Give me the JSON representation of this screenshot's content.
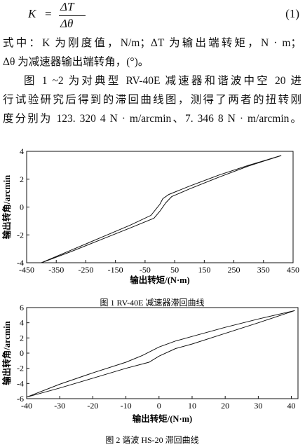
{
  "equation": {
    "lhs": "K",
    "eq": "=",
    "num": "ΔT",
    "den": "Δθ",
    "number": "(1)"
  },
  "paragraph": [
    "式中：K 为刚度值，N/m；ΔT 为输出端转矩，N · m；",
    "Δθ 为减速器输出端转角，(°)。",
    "图 1 ~2 为对典型 RV-40E 减速器和谐波中空 20 进",
    "行试验研究后得到的滞回曲线图，测得了两者的扭转刚",
    "度分别为 123. 320 4 N · m/arcmin、7. 346 8 N · m/arcmin。"
  ],
  "charts": [
    {
      "type": "line",
      "xlabel": "输出转矩/(N·m)",
      "ylabel": "输出转角/arcmin",
      "caption": "图 1   RV-40E 减速器滞回曲线",
      "xlim": [
        -450,
        450
      ],
      "ylim": [
        -4,
        4
      ],
      "xticks": [
        -450,
        -350,
        -250,
        -150,
        -50,
        50,
        150,
        250,
        350,
        450
      ],
      "yticks": [
        -4,
        -2,
        0,
        2,
        4
      ],
      "series": [
        {
          "color": "#111111",
          "x": [
            -400,
            -300,
            -200,
            -100,
            -30,
            0,
            10,
            30,
            100,
            200,
            300,
            410
          ],
          "values": [
            -4,
            -3.1,
            -2.2,
            -1.3,
            -0.6,
            0.2,
            0.6,
            0.9,
            1.5,
            2.3,
            3.0,
            3.7
          ]
        },
        {
          "color": "#111111",
          "x": [
            -400,
            -300,
            -200,
            -100,
            -20,
            0,
            20,
            40,
            100,
            200,
            300,
            410
          ],
          "values": [
            -4,
            -3.2,
            -2.35,
            -1.5,
            -0.8,
            -0.3,
            0.3,
            0.75,
            1.3,
            2.15,
            2.95,
            3.7
          ]
        }
      ]
    },
    {
      "type": "line",
      "xlabel": "输出转矩/(N·m)",
      "ylabel": "输出转角/arcmin",
      "caption": "图 2   谐波 HS-20 滞回曲线",
      "xlim": [
        -40,
        42
      ],
      "ylim": [
        -6,
        6
      ],
      "xticks": [
        -40,
        -30,
        -20,
        -10,
        0,
        10,
        20,
        30,
        40
      ],
      "yticks": [
        -6,
        -4,
        -2,
        0,
        2,
        4,
        6
      ],
      "series": [
        {
          "color": "#111111",
          "x": [
            -40,
            -30,
            -20,
            -10,
            -5,
            0,
            5,
            10,
            20,
            30,
            41
          ],
          "values": [
            -5.8,
            -4.1,
            -2.6,
            -1.2,
            -0.3,
            0.8,
            1.6,
            2.2,
            3.4,
            4.5,
            5.6
          ]
        },
        {
          "color": "#111111",
          "x": [
            -40,
            -30,
            -20,
            -10,
            -3,
            0,
            5,
            10,
            20,
            30,
            41
          ],
          "values": [
            -5.8,
            -4.6,
            -3.3,
            -2.0,
            -1.2,
            -0.4,
            0.6,
            1.2,
            2.6,
            4.0,
            5.6
          ]
        }
      ]
    }
  ]
}
